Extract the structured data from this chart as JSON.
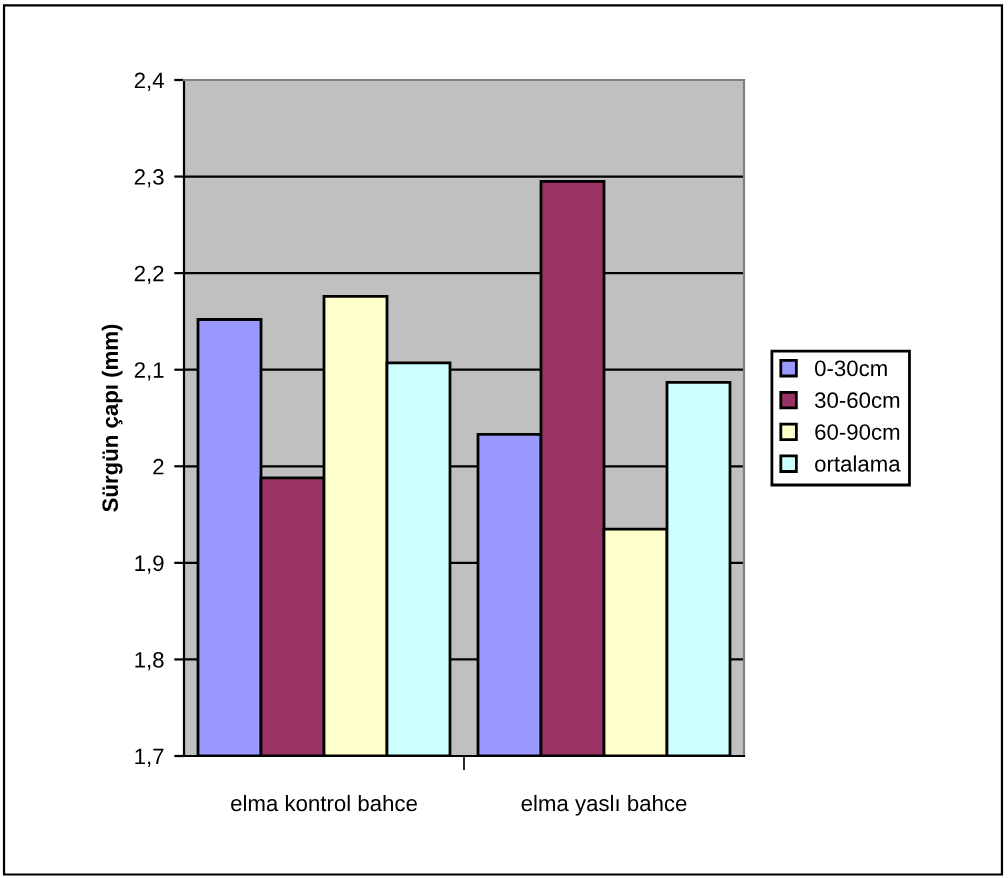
{
  "chart_data": {
    "type": "bar",
    "ylabel": "Sürgün çapı (mm)",
    "categories": [
      "elma kontrol bahce",
      "elma yaslı bahce"
    ],
    "series": [
      {
        "name": "0-30cm",
        "color": "#9999ff",
        "values": [
          2.152,
          2.033
        ]
      },
      {
        "name": "30-60cm",
        "color": "#993366",
        "values": [
          1.988,
          2.295
        ]
      },
      {
        "name": "60-90cm",
        "color": "#ffffcc",
        "values": [
          2.176,
          1.935
        ]
      },
      {
        "name": "ortalama",
        "color": "#ccffff",
        "values": [
          2.107,
          2.087
        ]
      }
    ],
    "ylim": [
      1.7,
      2.4
    ],
    "yticks": [
      {
        "value": 1.7,
        "label": "1,7"
      },
      {
        "value": 1.8,
        "label": "1,8"
      },
      {
        "value": 1.9,
        "label": "1,9"
      },
      2,
      {
        "value": 2.1,
        "label": "2,1"
      },
      {
        "value": 2.2,
        "label": "2,2"
      },
      {
        "value": 2.3,
        "label": "2,3"
      },
      {
        "value": 2.4,
        "label": "2,4"
      }
    ],
    "grid": "y",
    "legend": "right"
  }
}
